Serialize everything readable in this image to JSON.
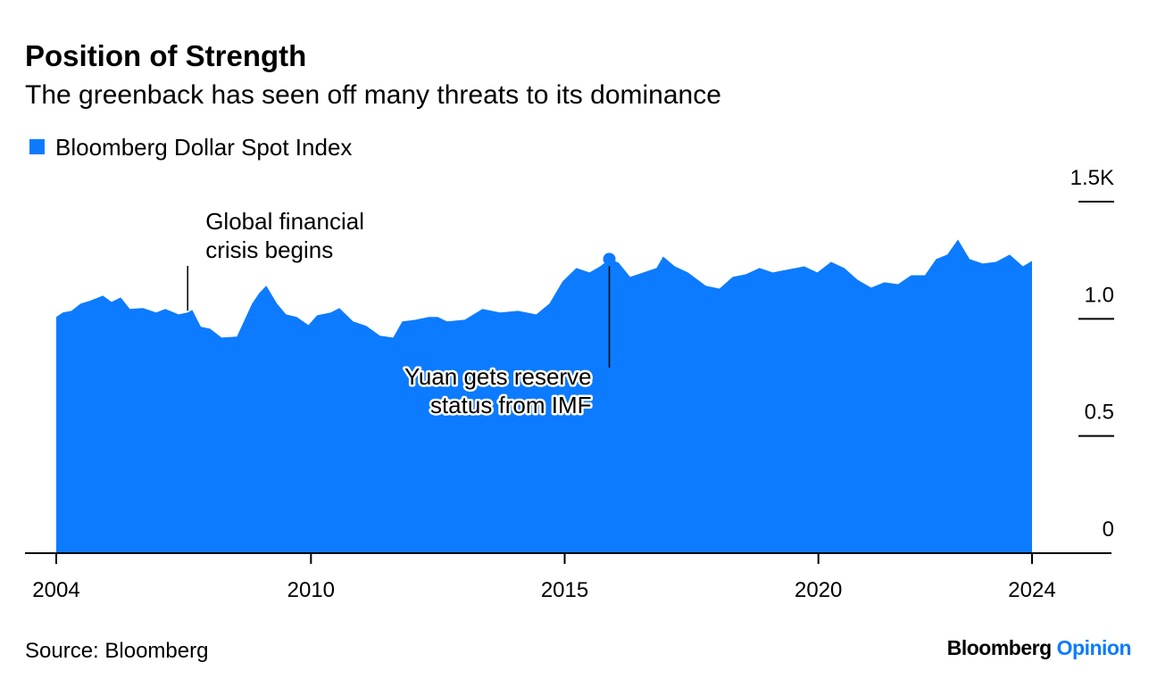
{
  "chart_data": {
    "type": "area",
    "title": "Position of Strength",
    "subtitle": "The greenback has seen off many threats to its dominance",
    "source": "Source: Bloomberg",
    "series": [
      {
        "name": "Bloomberg Dollar Spot Index",
        "color": "#0c7bff",
        "x": [
          2004.98,
          2005.11,
          2005.28,
          2005.46,
          2005.63,
          2005.9,
          2006.07,
          2006.25,
          2006.43,
          2006.69,
          2006.95,
          2007.13,
          2007.39,
          2007.57,
          2007.66,
          2007.83,
          2008.01,
          2008.24,
          2008.54,
          2008.71,
          2008.84,
          2008.98,
          2009.12,
          2009.33,
          2009.51,
          2009.72,
          2009.95,
          2010.12,
          2010.39,
          2010.56,
          2010.83,
          2011.09,
          2011.36,
          2011.62,
          2011.8,
          2012.06,
          2012.32,
          2012.5,
          2012.68,
          2013.03,
          2013.38,
          2013.73,
          2014.08,
          2014.44,
          2014.7,
          2014.96,
          2015.23,
          2015.49,
          2015.7,
          2015.88,
          2016.06,
          2016.29,
          2016.55,
          2016.81,
          2016.94,
          2017.17,
          2017.43,
          2017.78,
          2018.05,
          2018.31,
          2018.57,
          2018.84,
          2019.1,
          2019.37,
          2019.72,
          2019.98,
          2020.25,
          2020.51,
          2020.77,
          2021.04,
          2021.3,
          2021.57,
          2021.83,
          2022.1,
          2022.32,
          2022.54,
          2022.75,
          2022.98,
          2023.24,
          2023.5,
          2023.77,
          2024.03,
          2024.21
        ],
        "values": [
          1008,
          1027,
          1034,
          1065,
          1076,
          1099,
          1072,
          1091,
          1042,
          1046,
          1027,
          1042,
          1019,
          1027,
          1038,
          966,
          958,
          920,
          924,
          1004,
          1065,
          1110,
          1141,
          1065,
          1019,
          1008,
          973,
          1015,
          1027,
          1046,
          989,
          970,
          928,
          920,
          989,
          996,
          1008,
          1008,
          989,
          996,
          1042,
          1027,
          1034,
          1019,
          1065,
          1160,
          1217,
          1198,
          1224,
          1255,
          1240,
          1179,
          1198,
          1217,
          1266,
          1224,
          1198,
          1141,
          1129,
          1179,
          1190,
          1217,
          1198,
          1209,
          1224,
          1198,
          1243,
          1217,
          1167,
          1133,
          1156,
          1148,
          1186,
          1186,
          1255,
          1274,
          1338,
          1255,
          1236,
          1243,
          1274,
          1224,
          1247
        ]
      }
    ],
    "xlim": [
      2004.98,
      2024.21
    ],
    "xticks": [
      {
        "value": 2004.98,
        "label": "2004"
      },
      2010,
      2015,
      2020,
      {
        "value": 2024.21,
        "label": "2024"
      }
    ],
    "ylim": [
      0,
      1500
    ],
    "yticks": [
      0,
      {
        "value": 500,
        "label": "0.5"
      },
      {
        "value": 1000,
        "label": "1.0"
      },
      {
        "value": 1500,
        "label": "1.5K"
      }
    ],
    "annotations": [
      {
        "x": 2007.57,
        "text": [
          "Global financial",
          "crisis begins"
        ]
      },
      {
        "x": 2015.88,
        "text": [
          "Yuan gets reserve",
          "status from IMF"
        ]
      }
    ]
  },
  "branding": {
    "name": "Bloomberg",
    "section": "Opinion"
  }
}
